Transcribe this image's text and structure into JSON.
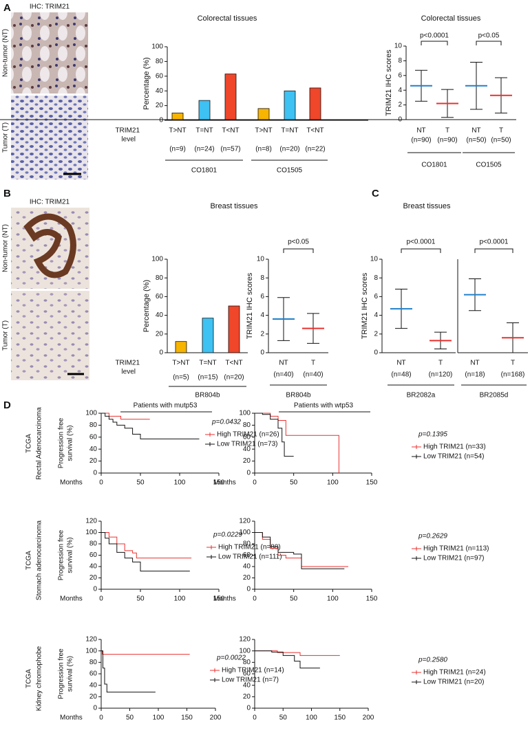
{
  "figure": {
    "panels": [
      "A",
      "B",
      "C",
      "D"
    ],
    "ihc_label": "IHC: TRIM21",
    "tissue_labels": [
      "Non-tumor (NT)",
      "Tumor (T)"
    ],
    "column_headers": [
      "Patients with mutp53",
      "Patients with wtp53"
    ],
    "row_labels": [
      [
        "TCGA",
        "Rectal Adenocarcinoma"
      ],
      [
        "TCGA",
        "Stomach adenocarcinoma"
      ],
      [
        "TCGA",
        "Kidney chromophobe"
      ]
    ]
  },
  "chart_data": [
    {
      "type": "bar",
      "title": "Colorectal tissues",
      "ylabel": "Percentage (%)",
      "row_label": [
        "TRIM21",
        "level"
      ],
      "ylim": [
        0,
        100
      ],
      "yticks": [
        0,
        20,
        40,
        60,
        80,
        100
      ],
      "colors": [
        "#f7b400",
        "#3ec1f3",
        "#f0462a"
      ],
      "groups": [
        {
          "label": "CO1801",
          "categories": [
            "T>NT",
            "T=NT",
            "T<NT"
          ],
          "n": [
            "(n=9)",
            "(n=24)",
            "(n=57)"
          ],
          "values": [
            10,
            27,
            63
          ]
        },
        {
          "label": "CO1505",
          "categories": [
            "T>NT",
            "T=NT",
            "T<NT"
          ],
          "n": [
            "(n=8)",
            "(n=20)",
            "(n=22)"
          ],
          "values": [
            16,
            40,
            44
          ]
        }
      ]
    },
    {
      "type": "dot",
      "title": "Colorectal tissues",
      "ylabel": "TRIM21 IHC scores",
      "ylim": [
        0,
        10
      ],
      "yticks": [
        0,
        2,
        4,
        6,
        8,
        10
      ],
      "colors": [
        "#1f7fc9",
        "#e8312f"
      ],
      "groups": [
        {
          "label": "CO1801",
          "p": "p<0.0001",
          "categories": [
            "NT",
            "T"
          ],
          "n": [
            "(n=90)",
            "(n=90)"
          ],
          "mean": [
            4.6,
            2.2
          ],
          "sd": [
            2.1,
            1.9
          ]
        },
        {
          "label": "CO1505",
          "p": "p<0.05",
          "categories": [
            "NT",
            "T"
          ],
          "n": [
            "(n=50)",
            "(n=50)"
          ],
          "mean": [
            4.6,
            3.3
          ],
          "sd": [
            3.2,
            2.4
          ]
        }
      ]
    },
    {
      "type": "bar",
      "title": "Breast tissues",
      "ylabel": "Percentage (%)",
      "row_label": [
        "TRIM21",
        "level"
      ],
      "ylim": [
        0,
        100
      ],
      "yticks": [
        0,
        20,
        40,
        60,
        80,
        100
      ],
      "colors": [
        "#f7b400",
        "#3ec1f3",
        "#f0462a"
      ],
      "groups": [
        {
          "label": "BR804b",
          "categories": [
            "T>NT",
            "T=NT",
            "T<NT"
          ],
          "n": [
            "(n=5)",
            "(n=15)",
            "(n=20)"
          ],
          "values": [
            12,
            37,
            50
          ]
        }
      ]
    },
    {
      "type": "dot",
      "ylabel": "TRIM21 IHC scores",
      "ylim": [
        0,
        10
      ],
      "yticks": [
        0,
        2,
        4,
        6,
        8,
        10
      ],
      "colors": [
        "#1f7fc9",
        "#e8312f"
      ],
      "groups": [
        {
          "label": "BR804b",
          "p": "p<0.05",
          "categories": [
            "NT",
            "T"
          ],
          "n": [
            "(n=40)",
            "(n=40)"
          ],
          "mean": [
            3.6,
            2.6
          ],
          "sd": [
            2.3,
            1.6
          ]
        }
      ]
    },
    {
      "type": "dot",
      "title": "Breast tissues",
      "ylabel": "TRIM21 IHC scores",
      "ylim": [
        0,
        10
      ],
      "yticks": [
        0,
        2,
        4,
        6,
        8,
        10
      ],
      "colors": [
        "#1f7fc9",
        "#e8312f"
      ],
      "groups": [
        {
          "label": "BR2082a",
          "p": "p<0.0001",
          "categories": [
            "NT",
            "T"
          ],
          "n": [
            "(n=48)",
            "(n=120)"
          ],
          "mean": [
            4.7,
            1.3
          ],
          "sd": [
            2.1,
            0.9
          ]
        },
        {
          "label": "BR2085d",
          "p": "p<0.0001",
          "categories": [
            "NT",
            "T"
          ],
          "n": [
            "(n=18)",
            "(n=168)"
          ],
          "mean": [
            6.2,
            1.6
          ],
          "sd": [
            1.7,
            1.6
          ]
        }
      ]
    },
    {
      "type": "line",
      "xlabel": "Months",
      "ylabel": [
        "Progression free",
        "survival (%)"
      ],
      "p": "p=0.0432",
      "xlim": [
        0,
        150
      ],
      "xticks": [
        0,
        50,
        100,
        150
      ],
      "ylim": [
        0,
        100
      ],
      "yticks": [
        0,
        20,
        40,
        60,
        80,
        100
      ],
      "series": [
        {
          "name": "High TRIM21 (n=26)",
          "color": "#e8312f",
          "x": [
            0,
            10,
            10,
            25,
            25,
            62
          ],
          "values": [
            100,
            100,
            95,
            95,
            90,
            90
          ]
        },
        {
          "name": "Low TRIM21 (n=73)",
          "color": "#111111",
          "x": [
            0,
            5,
            5,
            10,
            10,
            15,
            15,
            20,
            20,
            30,
            30,
            40,
            40,
            50,
            50,
            125
          ],
          "values": [
            100,
            100,
            95,
            95,
            90,
            90,
            85,
            85,
            80,
            80,
            75,
            75,
            65,
            65,
            57,
            57
          ]
        }
      ]
    },
    {
      "type": "line",
      "xlabel": "Months",
      "p": "p=0.1395",
      "xlim": [
        0,
        150
      ],
      "xticks": [
        0,
        50,
        100,
        150
      ],
      "ylim": [
        0,
        100
      ],
      "yticks": [
        0,
        20,
        40,
        60,
        80,
        100
      ],
      "series": [
        {
          "name": "High TRIM21 (n=33)",
          "color": "#e8312f",
          "x": [
            0,
            20,
            20,
            30,
            30,
            40,
            40,
            108,
            108
          ],
          "values": [
            100,
            100,
            95,
            95,
            88,
            88,
            63,
            63,
            0
          ]
        },
        {
          "name": "Low TRIM21  (n=54)",
          "color": "#111111",
          "x": [
            0,
            10,
            10,
            20,
            20,
            30,
            30,
            35,
            35,
            38,
            38,
            50
          ],
          "values": [
            100,
            100,
            98,
            98,
            90,
            90,
            75,
            75,
            52,
            52,
            28,
            28
          ]
        }
      ]
    },
    {
      "type": "line",
      "xlabel": "Months",
      "ylabel": [
        "Progression free",
        "survival (%)"
      ],
      "p": "p=0.0229",
      "xlim": [
        0,
        150
      ],
      "xticks": [
        0,
        50,
        100,
        150
      ],
      "ylim": [
        0,
        120
      ],
      "yticks": [
        0,
        20,
        40,
        60,
        80,
        100,
        120
      ],
      "series": [
        {
          "name": "High TRIM21 (n=88)",
          "color": "#e8312f",
          "x": [
            0,
            10,
            10,
            20,
            20,
            30,
            30,
            40,
            40,
            45,
            45,
            115
          ],
          "values": [
            100,
            100,
            92,
            92,
            80,
            80,
            68,
            68,
            64,
            64,
            55,
            55
          ]
        },
        {
          "name": "Low TRIM21 (n=111)",
          "color": "#111111",
          "x": [
            0,
            5,
            5,
            10,
            10,
            20,
            20,
            30,
            30,
            40,
            40,
            50,
            50,
            113
          ],
          "values": [
            100,
            100,
            90,
            90,
            80,
            80,
            65,
            65,
            55,
            55,
            48,
            48,
            32,
            32
          ]
        }
      ]
    },
    {
      "type": "line",
      "xlabel": "Months",
      "p": "p=0.2629",
      "xlim": [
        0,
        150
      ],
      "xticks": [
        0,
        50,
        100,
        150
      ],
      "ylim": [
        0,
        120
      ],
      "yticks": [
        0,
        20,
        40,
        60,
        80,
        100,
        120
      ],
      "series": [
        {
          "name": "High TRIM21 (n=113)",
          "color": "#e8312f",
          "x": [
            0,
            10,
            10,
            20,
            20,
            30,
            30,
            40,
            40,
            60,
            60,
            120
          ],
          "values": [
            100,
            100,
            88,
            88,
            72,
            72,
            60,
            60,
            55,
            55,
            40,
            40
          ]
        },
        {
          "name": "Low TRIM21 (n=97)",
          "color": "#111111",
          "x": [
            0,
            10,
            10,
            20,
            20,
            30,
            30,
            50,
            50,
            60,
            60,
            115
          ],
          "values": [
            100,
            100,
            92,
            92,
            75,
            75,
            65,
            65,
            62,
            62,
            36,
            36
          ]
        }
      ]
    },
    {
      "type": "line",
      "xlabel": "Months",
      "ylabel": [
        "Progression free",
        "survival (%)"
      ],
      "p": "p=0.0022",
      "xlim": [
        0,
        200
      ],
      "xticks": [
        0,
        50,
        100,
        150,
        200
      ],
      "ylim": [
        0,
        120
      ],
      "yticks": [
        0,
        20,
        40,
        60,
        80,
        100,
        120
      ],
      "series": [
        {
          "name": "High TRIM21 (n=14)",
          "color": "#e8312f",
          "x": [
            0,
            2,
            2,
            155
          ],
          "values": [
            100,
            100,
            94,
            94
          ]
        },
        {
          "name": "Low TRIM21 (n=7)",
          "color": "#111111",
          "x": [
            0,
            3,
            3,
            6,
            6,
            10,
            10,
            95
          ],
          "values": [
            100,
            100,
            70,
            70,
            42,
            42,
            28,
            28
          ]
        }
      ]
    },
    {
      "type": "line",
      "p": "p=0.2580",
      "xlim": [
        0,
        200
      ],
      "xticks": [
        0,
        50,
        100,
        150,
        200
      ],
      "ylim": [
        0,
        120
      ],
      "yticks": [
        0,
        20,
        40,
        60,
        80,
        100,
        120
      ],
      "series": [
        {
          "name": "High TRIM21 (n=24)",
          "color": "#e8312f",
          "x": [
            0,
            40,
            40,
            80,
            80,
            150
          ],
          "values": [
            100,
            100,
            97,
            97,
            92,
            92
          ]
        },
        {
          "name": "Low TRIM21 (n=20)",
          "color": "#111111",
          "x": [
            0,
            30,
            30,
            50,
            50,
            70,
            70,
            80,
            80,
            115
          ],
          "values": [
            100,
            100,
            98,
            98,
            92,
            92,
            82,
            82,
            70,
            70
          ]
        }
      ]
    }
  ]
}
